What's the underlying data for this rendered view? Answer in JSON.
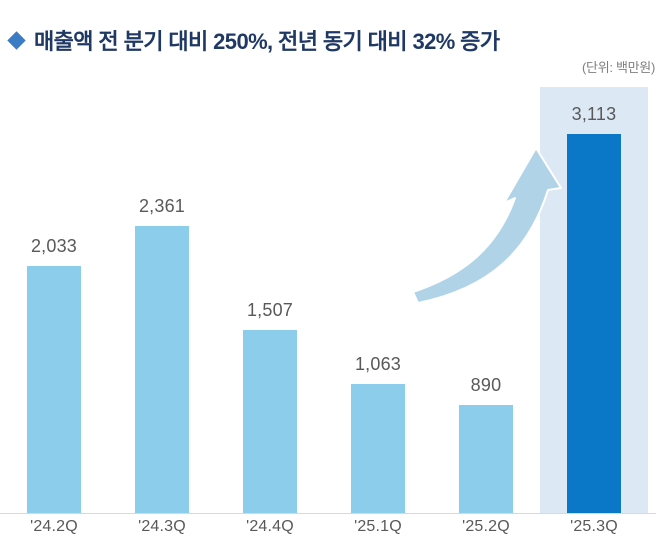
{
  "header": {
    "title": "매출액 전 분기 대비 250%, 전년 동기 대비 32% 증가",
    "unit_label": "(단위: 백만원)"
  },
  "chart_data": {
    "type": "bar",
    "title": "매출액 전 분기 대비 250%, 전년 동기 대비 32% 증가",
    "unit_annotation": "(단위: 백만원)",
    "categories": [
      "'24.2Q",
      "'24.3Q",
      "'24.4Q",
      "'25.1Q",
      "'25.2Q",
      "'25.3Q"
    ],
    "values": [
      2033,
      2361,
      1507,
      1063,
      890,
      3113
    ],
    "value_labels": [
      "2,033",
      "2,361",
      "1,507",
      "1,063",
      "890",
      "3,113"
    ],
    "xlabel": "",
    "ylabel": "",
    "ylim": [
      0,
      3500
    ],
    "grid": false,
    "legend": false,
    "highlight_index": 5,
    "colors": {
      "bar": "#8ccdeb",
      "highlight_bar": "#0a78c6",
      "highlight_panel": "#dce9f5",
      "arrow": "#b0d3e8",
      "title_text": "#1f3864",
      "bullet": "#3b7cc4",
      "label_text": "#595959",
      "unit_text": "#7f7f7f",
      "baseline": "#d9d9d9"
    }
  }
}
